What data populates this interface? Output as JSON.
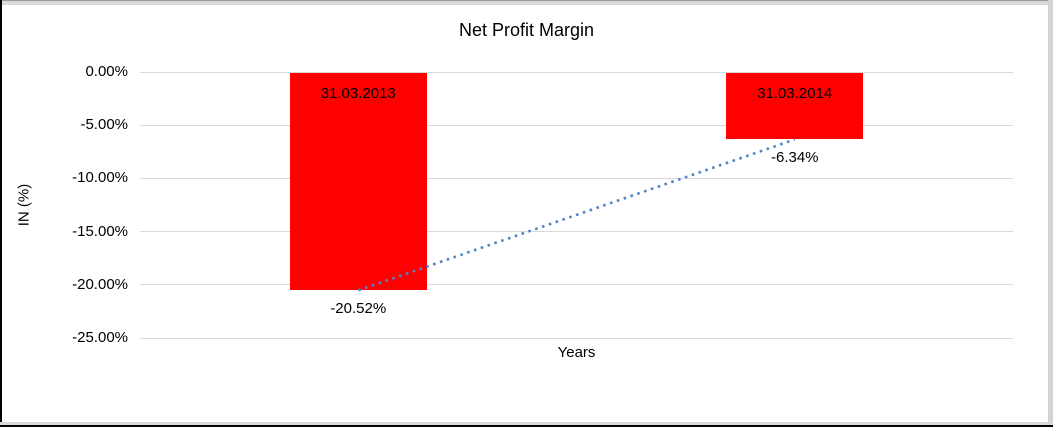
{
  "chart_data": {
    "type": "bar",
    "title": "Net Profit Margin",
    "xlabel": "Years",
    "ylabel": "IN (%)",
    "categories": [
      "31.03.2013",
      "31.03.2014"
    ],
    "values": [
      -20.52,
      -6.34
    ],
    "value_labels": [
      "-20.52%",
      "-6.34%"
    ],
    "ytick_labels": [
      "0.00%",
      "-5.00%",
      "-10.00%",
      "-15.00%",
      "-20.00%",
      "-25.00%"
    ],
    "ytick_values": [
      0,
      -5,
      -10,
      -15,
      -20,
      -25
    ],
    "ylim": [
      -25,
      0
    ],
    "grid": true,
    "legend": "none",
    "colors": {
      "bar": "#ff0000",
      "bar_label": "#000000",
      "gridline": "#d9d9d9",
      "trendline": "#4e86c8",
      "text": "#000000",
      "background": "#ffffff"
    },
    "trendline": {
      "type": "linear",
      "style": "dotted",
      "connects": [
        "31.03.2013",
        "31.03.2014"
      ]
    }
  }
}
